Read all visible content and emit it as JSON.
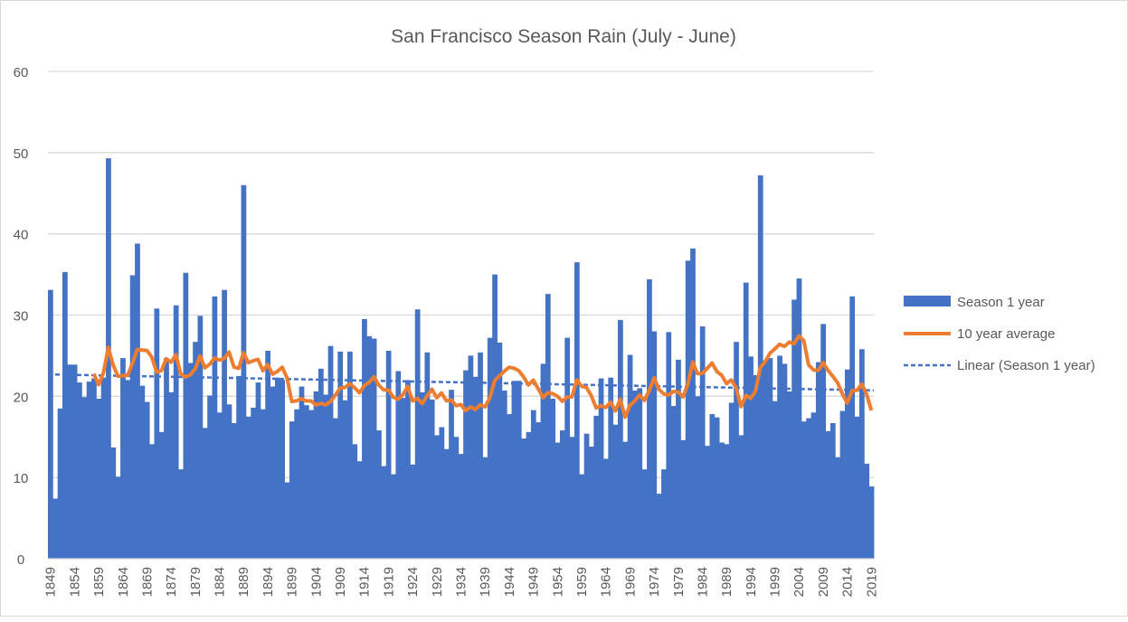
{
  "chart_data": {
    "type": "bar",
    "title": "San Francisco Season Rain (July - June)",
    "xlabel": "",
    "ylabel": "",
    "ylim": [
      0,
      60
    ],
    "yticks": [
      0,
      10,
      20,
      30,
      40,
      50,
      60
    ],
    "grid": true,
    "legend_placement": "right",
    "start_year": 1849,
    "x_label_step": 5,
    "series": [
      {
        "name": "Season 1 year",
        "kind": "bar",
        "color": "#4472C4",
        "values": [
          33.1,
          7.4,
          18.5,
          35.3,
          23.9,
          23.9,
          21.7,
          19.9,
          21.8,
          22.2,
          19.7,
          22.3,
          49.3,
          13.7,
          10.1,
          24.7,
          22.0,
          34.9,
          38.8,
          21.3,
          19.3,
          14.1,
          30.8,
          15.6,
          24.7,
          20.5,
          31.2,
          11.0,
          35.2,
          24.1,
          26.7,
          29.9,
          16.1,
          20.1,
          32.3,
          18.0,
          33.1,
          19.0,
          16.7,
          22.5,
          46.0,
          17.5,
          18.6,
          21.7,
          18.4,
          25.6,
          21.2,
          22.3,
          22.0,
          9.4,
          16.9,
          18.4,
          21.2,
          18.9,
          18.3,
          20.6,
          23.4,
          20.2,
          26.2,
          17.3,
          25.5,
          19.5,
          25.5,
          14.1,
          12.0,
          29.5,
          27.4,
          27.1,
          15.8,
          11.4,
          25.6,
          10.4,
          23.1,
          19.8,
          22.0,
          11.6,
          30.7,
          20.5,
          25.4,
          19.6,
          15.2,
          16.2,
          13.5,
          20.8,
          15.0,
          12.9,
          23.2,
          25.0,
          22.4,
          25.4,
          12.5,
          27.2,
          35.0,
          26.6,
          20.7,
          17.8,
          21.9,
          21.9,
          14.8,
          15.6,
          18.3,
          16.8,
          24.0,
          32.6,
          19.7,
          14.3,
          15.8,
          27.2,
          15.0,
          36.5,
          10.4,
          15.4,
          13.8,
          17.6,
          22.2,
          12.3,
          22.3,
          16.5,
          29.4,
          14.4,
          25.1,
          20.7,
          21.0,
          11.0,
          34.4,
          28.0,
          8.0,
          11.0,
          27.9,
          18.8,
          24.5,
          14.6,
          36.7,
          38.2,
          20.0,
          28.6,
          13.9,
          17.8,
          17.4,
          14.3,
          14.1,
          19.2,
          26.7,
          15.2,
          34.0,
          24.9,
          22.6,
          47.2,
          24.4,
          24.7,
          19.4,
          25.0,
          24.0,
          20.6,
          31.9,
          34.5,
          16.9,
          17.3,
          18.0,
          24.2,
          28.9,
          15.7,
          16.7,
          12.5,
          18.2,
          23.3,
          32.3,
          17.5,
          25.8,
          11.7,
          8.9
        ]
      },
      {
        "name": "10 year average",
        "kind": "moving-average",
        "period": 10,
        "color": "#ED7D31"
      },
      {
        "name": "Linear (Season 1 year)",
        "kind": "linear-trend",
        "color": "#4472C4"
      }
    ]
  }
}
